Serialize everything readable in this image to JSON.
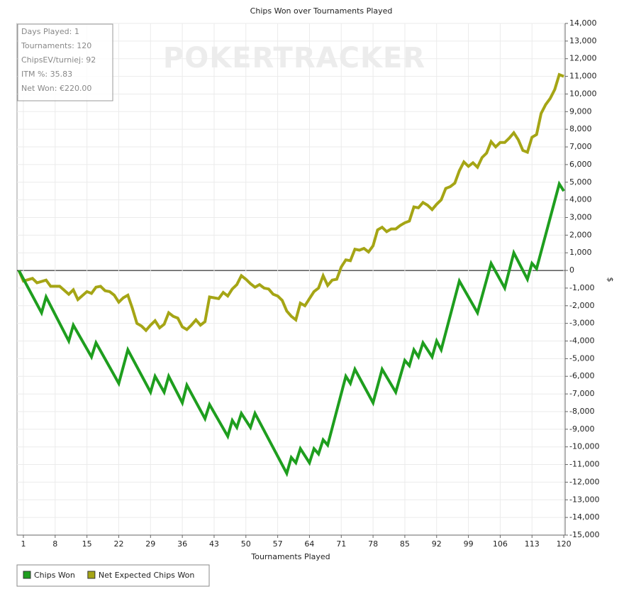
{
  "chart_data": {
    "type": "line",
    "title": "Chips Won over Tournaments Played",
    "x_label": "Tournaments Played",
    "y_label": "$",
    "watermark": "POKERTRACKER",
    "info_box": [
      "Days Played: 1",
      "Tournaments: 120",
      "ChipsEV/turniej: 92",
      "ITM %: 35.83",
      "Net Won: €220.00"
    ],
    "grid": true,
    "legend_position": "bottom-left",
    "xlim": [
      -0.4,
      120.3
    ],
    "ylim": [
      -15000,
      14000
    ],
    "xticks": [
      1,
      8,
      15,
      22,
      29,
      36,
      43,
      50,
      57,
      64,
      71,
      78,
      85,
      92,
      99,
      106,
      113,
      120
    ],
    "yticks": [
      {
        "value": 14000,
        "label": "14,000"
      },
      {
        "value": 13000,
        "label": "13,000"
      },
      {
        "value": 12000,
        "label": "12,000"
      },
      {
        "value": 11000,
        "label": "11,000"
      },
      {
        "value": 10000,
        "label": "10,000"
      },
      {
        "value": 9000,
        "label": "9,000"
      },
      {
        "value": 8000,
        "label": "8,000"
      },
      {
        "value": 7000,
        "label": "7,000"
      },
      {
        "value": 6000,
        "label": "6,000"
      },
      {
        "value": 5000,
        "label": "5,000"
      },
      {
        "value": 4000,
        "label": "4,000"
      },
      {
        "value": 3000,
        "label": "3,000"
      },
      {
        "value": 2000,
        "label": "2,000"
      },
      {
        "value": 1000,
        "label": "1,000"
      },
      0,
      {
        "value": -1000,
        "label": "-1,000"
      },
      {
        "value": -2000,
        "label": "-2,000"
      },
      {
        "value": -3000,
        "label": "-3,000"
      },
      {
        "value": -4000,
        "label": "-4,000"
      },
      {
        "value": -5000,
        "label": "-5,000"
      },
      {
        "value": -6000,
        "label": "-6,000"
      },
      {
        "value": -7000,
        "label": "-7,000"
      },
      {
        "value": -8000,
        "label": "-8,000"
      },
      {
        "value": -9000,
        "label": "-9,000"
      },
      {
        "value": -10000,
        "label": "-10,000"
      },
      {
        "value": -11000,
        "label": "-11,000"
      },
      {
        "value": -12000,
        "label": "-12,000"
      },
      {
        "value": -13000,
        "label": "-13,000"
      },
      {
        "value": -14000,
        "label": "-14,000"
      },
      {
        "value": -15000,
        "label": "-15,000"
      }
    ],
    "series": [
      {
        "name": "Chips Won",
        "color": "#1e9e1e",
        "x": [
          0,
          5,
          6,
          11,
          12,
          16,
          17,
          22,
          24,
          29,
          30,
          32,
          33,
          36,
          37,
          41,
          42,
          46,
          47,
          48,
          49,
          51,
          52,
          59,
          60,
          61,
          62,
          64,
          65,
          66,
          67,
          68,
          72,
          73,
          74,
          78,
          80,
          83,
          85,
          86,
          87,
          88,
          89,
          91,
          92,
          93,
          97,
          101,
          104,
          107,
          109,
          112,
          113,
          114,
          119,
          120
        ],
        "values": [
          0,
          -2400,
          -1500,
          -4000,
          -3100,
          -4900,
          -4100,
          -6400,
          -4500,
          -6900,
          -6000,
          -6900,
          -6000,
          -7500,
          -6500,
          -8400,
          -7600,
          -9400,
          -8500,
          -8900,
          -8100,
          -8900,
          -8100,
          -11500,
          -10600,
          -10900,
          -10100,
          -10900,
          -10100,
          -10400,
          -9600,
          -9900,
          -6000,
          -6400,
          -5600,
          -7500,
          -5600,
          -6900,
          -5100,
          -5400,
          -4500,
          -4900,
          -4100,
          -4900,
          -4000,
          -4500,
          -600,
          -2400,
          400,
          -1000,
          1000,
          -500,
          400,
          100,
          4900,
          4500
        ]
      },
      {
        "name": "Net Expected Chips Won",
        "color": "#a5a515",
        "x": [
          0,
          1,
          3,
          4,
          6,
          7,
          9,
          11,
          12,
          13,
          15,
          16,
          17,
          18,
          19,
          20,
          21,
          22,
          23,
          24,
          25,
          26,
          27,
          28,
          29,
          30,
          31,
          32,
          33,
          34,
          35,
          36,
          37,
          38,
          39,
          40,
          41,
          42,
          43,
          44,
          45,
          46,
          47,
          48,
          49,
          50,
          51,
          52,
          53,
          54,
          55,
          56,
          57,
          58,
          59,
          60,
          61,
          62,
          63,
          64,
          65,
          66,
          67,
          68,
          69,
          70,
          71,
          72,
          73,
          74,
          75,
          76,
          77,
          78,
          79,
          80,
          81,
          82,
          83,
          84,
          85,
          86,
          87,
          88,
          89,
          90,
          91,
          92,
          93,
          94,
          95,
          96,
          97,
          98,
          99,
          100,
          101,
          102,
          103,
          104,
          105,
          106,
          107,
          108,
          109,
          110,
          111,
          112,
          113,
          114,
          115,
          116,
          117,
          118,
          119,
          120
        ],
        "values": [
          0,
          -600,
          -450,
          -700,
          -550,
          -900,
          -900,
          -1350,
          -1100,
          -1650,
          -1200,
          -1300,
          -950,
          -900,
          -1150,
          -1200,
          -1400,
          -1800,
          -1550,
          -1400,
          -2150,
          -3000,
          -3150,
          -3400,
          -3100,
          -2850,
          -3250,
          -3050,
          -2400,
          -2600,
          -2700,
          -3200,
          -3350,
          -3100,
          -2800,
          -3100,
          -2900,
          -1500,
          -1550,
          -1600,
          -1250,
          -1450,
          -1050,
          -800,
          -300,
          -500,
          -750,
          -950,
          -800,
          -1000,
          -1050,
          -1350,
          -1450,
          -1700,
          -2300,
          -2600,
          -2800,
          -1850,
          -2000,
          -1600,
          -1200,
          -1000,
          -300,
          -850,
          -550,
          -500,
          200,
          600,
          550,
          1200,
          1150,
          1250,
          1050,
          1400,
          2300,
          2450,
          2200,
          2350,
          2350,
          2550,
          2700,
          2800,
          3600,
          3550,
          3850,
          3700,
          3450,
          3750,
          4000,
          4650,
          4750,
          4950,
          5650,
          6150,
          5900,
          6100,
          5850,
          6400,
          6650,
          7300,
          7000,
          7250,
          7250,
          7500,
          7800,
          7400,
          6800,
          6700,
          7550,
          7700,
          8900,
          9400,
          9750,
          10250,
          11100,
          11000
        ]
      }
    ]
  }
}
